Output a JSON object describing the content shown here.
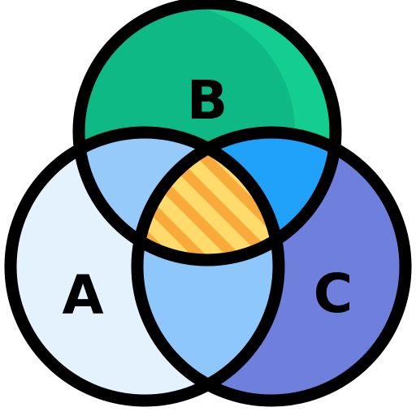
{
  "sets": {
    "a": {
      "label": "A",
      "fill": "#e3f2fd",
      "shade": "#c8e3fb"
    },
    "b": {
      "label": "B",
      "fill": "#13cd91",
      "shade": "#0fb985"
    },
    "c": {
      "label": "C",
      "fill": "#6e7fdc",
      "shade": "#5564d2"
    }
  },
  "overlaps": {
    "ab": "#95cafb",
    "bc": "#20a2fb",
    "ac": "#8ec7fb",
    "abc_base": "#fedb6a",
    "abc_stripe": "#f8ab3a"
  },
  "stroke": "#000000"
}
